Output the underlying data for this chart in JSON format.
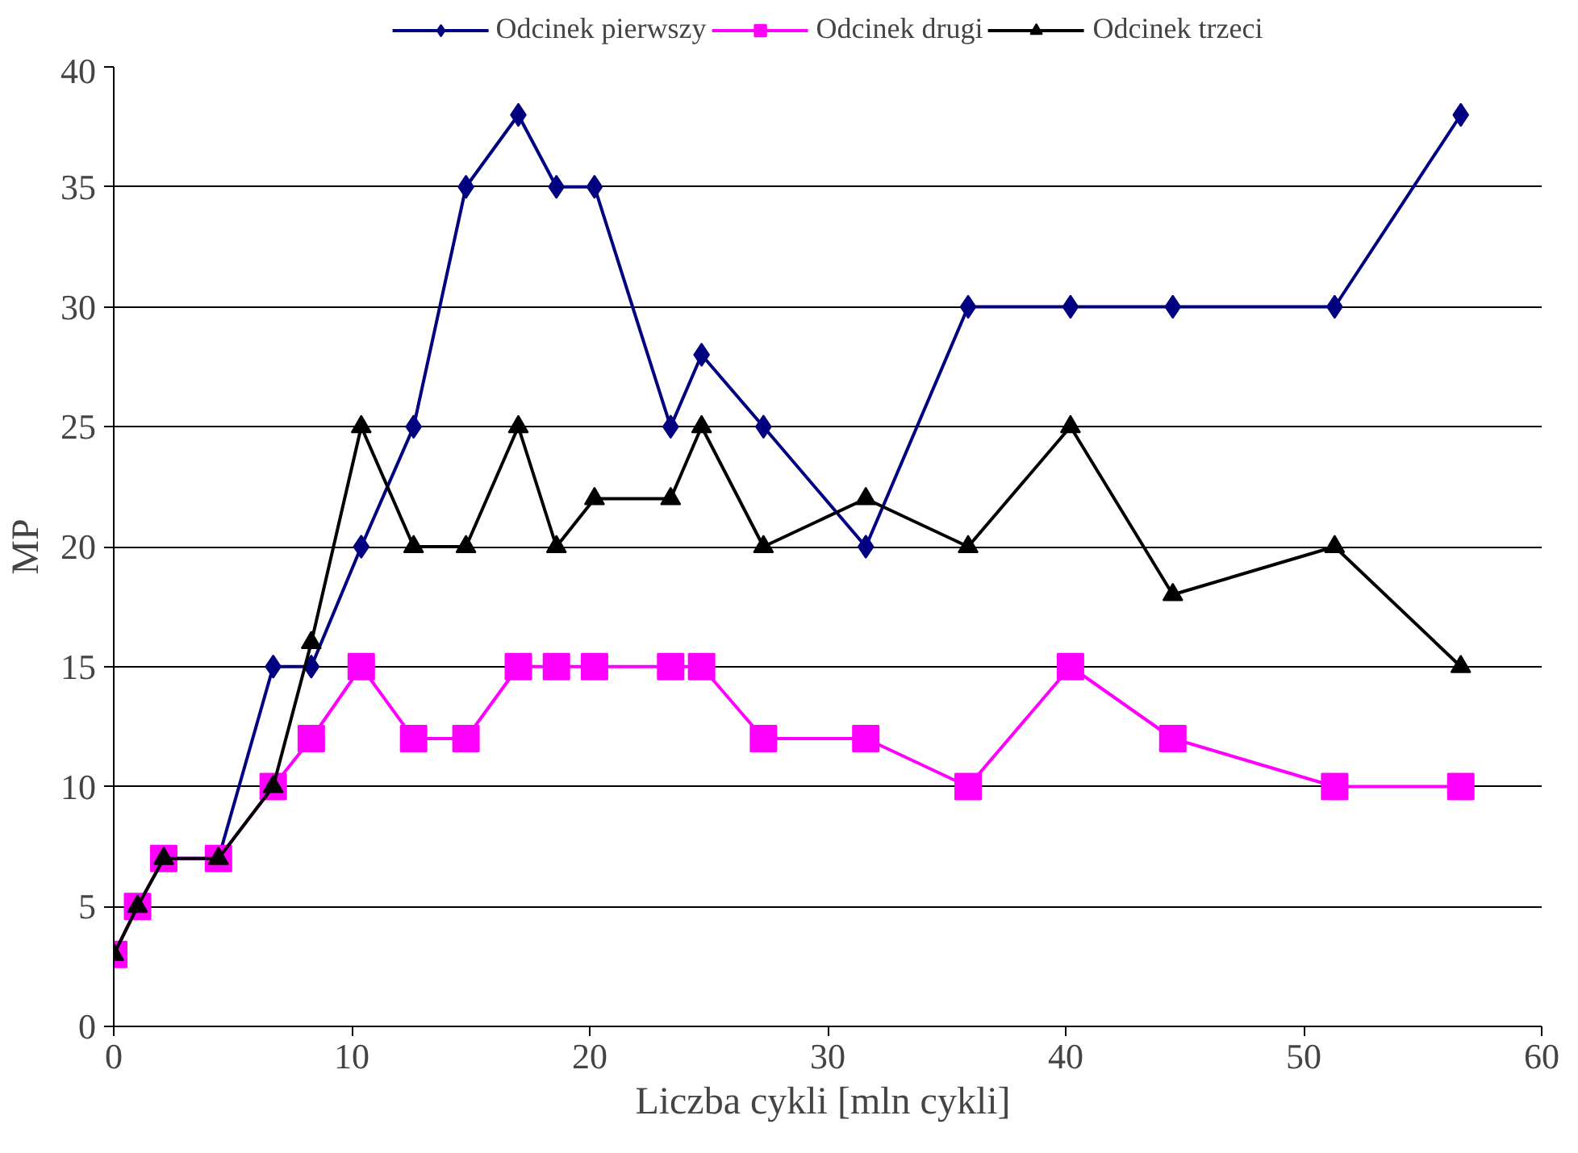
{
  "chart_data": {
    "type": "line",
    "xlabel": "Liczba cykli [mln  cykli]",
    "ylabel": "MP",
    "x": [
      0,
      1,
      2.1,
      4.4,
      6.7,
      8.3,
      10.4,
      12.6,
      14.8,
      17,
      18.6,
      20.2,
      23.4,
      24.7,
      27.3,
      31.6,
      35.9,
      40.2,
      44.5,
      51.3,
      56.6
    ],
    "series": [
      {
        "name": "Odcinek pierwszy",
        "color": "#000080",
        "marker": "diamond",
        "values": [
          null,
          null,
          7,
          7,
          15,
          15,
          20,
          25,
          35,
          38,
          35,
          35,
          25,
          28,
          25,
          20,
          30,
          30,
          30,
          30,
          38
        ]
      },
      {
        "name": "Odcinek drugi",
        "color": "#ff00ff",
        "marker": "square",
        "values": [
          3,
          5,
          7,
          7,
          10,
          12,
          15,
          12,
          12,
          15,
          15,
          15,
          15,
          15,
          12,
          12,
          10,
          15,
          12,
          10,
          10
        ]
      },
      {
        "name": "Odcinek trzeci",
        "color": "#000000",
        "marker": "triangle",
        "values": [
          3,
          5,
          7,
          7,
          10,
          16,
          25,
          20,
          20,
          25,
          20,
          22,
          22,
          25,
          20,
          22,
          20,
          25,
          18,
          20,
          15
        ]
      }
    ],
    "xlim": [
      0,
      60
    ],
    "xticks": [
      0,
      10,
      20,
      30,
      40,
      50,
      60
    ],
    "ylim": [
      0,
      40
    ],
    "yticks": [
      0,
      5,
      10,
      15,
      20,
      25,
      30,
      35,
      40
    ],
    "grid": "y",
    "legend": "top",
    "line_style": "solid"
  }
}
